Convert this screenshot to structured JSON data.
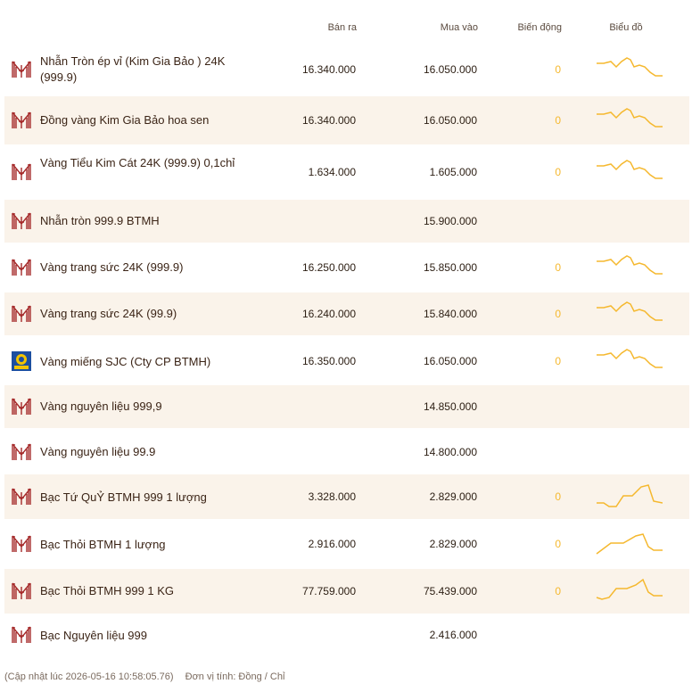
{
  "header": {
    "sell": "Bán ra",
    "buy": "Mua vào",
    "change": "Biến động",
    "chart": "Biểu đồ"
  },
  "rows": [
    {
      "name": "Nhẫn Tròn ép vỉ (Kim Gia Bảo ) 24K (999.9)",
      "sell": "16.340.000",
      "buy": "16.050.000",
      "change": "0",
      "logo": "btmh",
      "spark": "gold"
    },
    {
      "name": "Đồng vàng Kim Gia Bảo hoa sen",
      "sell": "16.340.000",
      "buy": "16.050.000",
      "change": "0",
      "logo": "btmh",
      "spark": "gold"
    },
    {
      "name": "Vàng Tiểu Kim Cát 24K (999.9) 0,1chỉ",
      "sell": "1.634.000",
      "buy": "1.605.000",
      "change": "0",
      "logo": "btmh",
      "spark": "gold"
    },
    {
      "name": "Nhẫn tròn 999.9 BTMH",
      "sell": "",
      "buy": "15.900.000",
      "change": "",
      "logo": "btmh",
      "spark": "none"
    },
    {
      "name": "Vàng trang sức 24K (999.9)",
      "sell": "16.250.000",
      "buy": "15.850.000",
      "change": "0",
      "logo": "btmh",
      "spark": "gold"
    },
    {
      "name": "Vàng trang sức 24K (99.9)",
      "sell": "16.240.000",
      "buy": "15.840.000",
      "change": "0",
      "logo": "btmh",
      "spark": "gold"
    },
    {
      "name": "Vàng miếng SJC (Cty CP BTMH)",
      "sell": "16.350.000",
      "buy": "16.050.000",
      "change": "0",
      "logo": "sjc",
      "spark": "gold"
    },
    {
      "name": "Vàng nguyên liệu 999,9",
      "sell": "",
      "buy": "14.850.000",
      "change": "",
      "logo": "btmh",
      "spark": "none"
    },
    {
      "name": "Vàng nguyên liệu 99.9",
      "sell": "",
      "buy": "14.800.000",
      "change": "",
      "logo": "btmh",
      "spark": "none"
    },
    {
      "name": "Bạc Tứ QuỶ BTMH 999 1 lượng",
      "sell": "3.328.000",
      "buy": "2.829.000",
      "change": "0",
      "logo": "btmh",
      "spark": "silver1"
    },
    {
      "name": "Bạc Thỏi BTMH 1 lượng",
      "sell": "2.916.000",
      "buy": "2.829.000",
      "change": "0",
      "logo": "btmh",
      "spark": "silver2"
    },
    {
      "name": "Bạc Thỏi BTMH 999 1 KG",
      "sell": "77.759.000",
      "buy": "75.439.000",
      "change": "0",
      "logo": "btmh",
      "spark": "silver3"
    },
    {
      "name": "Bạc Nguyên liệu 999",
      "sell": "",
      "buy": "2.416.000",
      "change": "",
      "logo": "btmh",
      "spark": "none"
    }
  ],
  "footer": {
    "updated": "(Cập nhật lúc 2026-05-16 10:58:05.76)",
    "unit": "Đơn vị tính: Đồng / Chỉ"
  },
  "colors": {
    "accent": "#f5b82e",
    "row_alt": "#faf3ea",
    "logo_red": "#a52a2a"
  }
}
